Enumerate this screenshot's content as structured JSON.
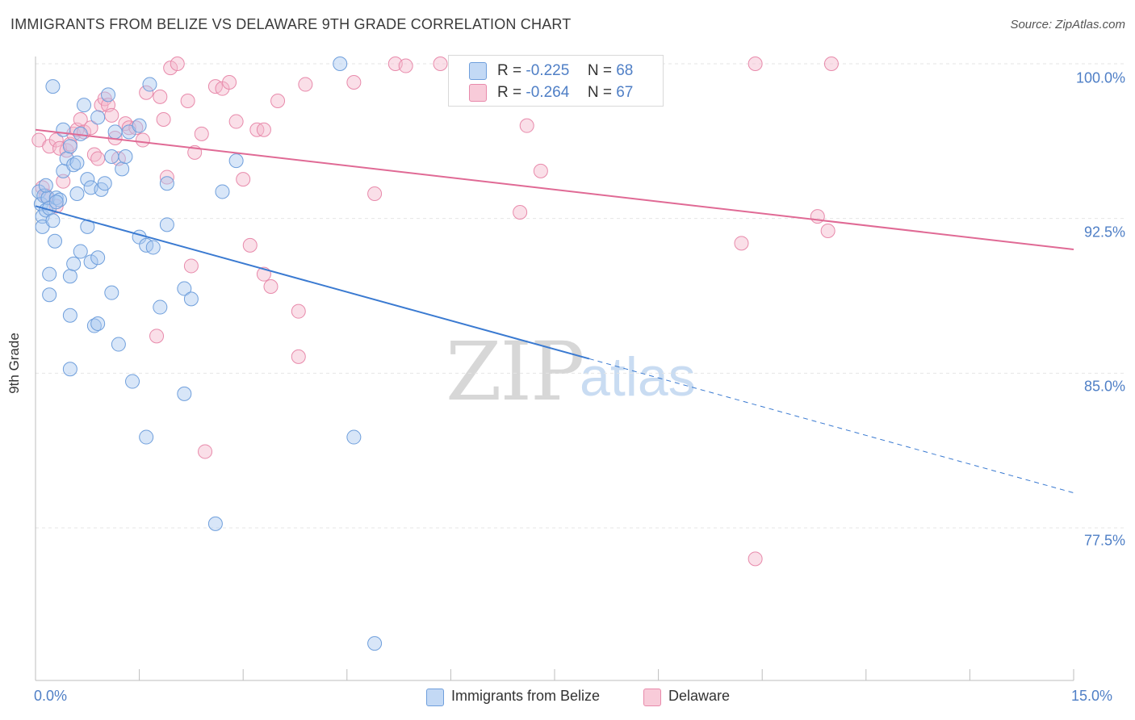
{
  "header": {
    "title": "IMMIGRANTS FROM BELIZE VS DELAWARE 9TH GRADE CORRELATION CHART",
    "source": "Source: ZipAtlas.com"
  },
  "watermark": {
    "zip": "ZIP",
    "atlas": "atlas"
  },
  "legend": {
    "r_label": "R =",
    "n_label": "N =",
    "series": [
      {
        "r": "-0.225",
        "n": "68"
      },
      {
        "r": "-0.264",
        "n": "67"
      }
    ]
  },
  "bottom_legend": {
    "items": [
      "Immigrants from Belize",
      "Delaware"
    ]
  },
  "colors": {
    "blue_fill": "#a9c8f0",
    "blue_stroke": "#6f9fdc",
    "blue_line": "#3a7ad1",
    "pink_fill": "#f5b8cc",
    "pink_stroke": "#e88aab",
    "pink_line": "#e06a95",
    "grid": "#e5e5e5"
  },
  "chart_data": {
    "type": "scatter",
    "title": "IMMIGRANTS FROM BELIZE VS DELAWARE 9TH GRADE CORRELATION CHART",
    "xlabel": "",
    "ylabel": "9th Grade",
    "xlim": [
      0,
      15
    ],
    "ylim": [
      70.5,
      100.7
    ],
    "x_tick_labels": [
      "0.0%",
      "15.0%"
    ],
    "y_ticks": [
      100.0,
      92.5,
      85.0,
      77.5
    ],
    "y_tick_labels": [
      "100.0%",
      "92.5%",
      "85.0%",
      "77.5%"
    ],
    "series": [
      {
        "name": "Immigrants from Belize",
        "color": "blue",
        "r": -0.225,
        "n": 68,
        "trend": {
          "x0": 0,
          "y0": 93.1,
          "x1": 8.0,
          "y1": 85.7,
          "dash_x1": 15.0,
          "dash_y1": 79.2
        },
        "points": [
          [
            0.05,
            93.8
          ],
          [
            0.08,
            93.2
          ],
          [
            0.1,
            92.6
          ],
          [
            0.12,
            93.6
          ],
          [
            0.15,
            92.9
          ],
          [
            0.18,
            93.5
          ],
          [
            0.1,
            92.1
          ],
          [
            0.2,
            93.0
          ],
          [
            0.25,
            92.4
          ],
          [
            0.3,
            93.5
          ],
          [
            0.35,
            93.4
          ],
          [
            0.28,
            91.4
          ],
          [
            0.4,
            94.8
          ],
          [
            0.45,
            95.4
          ],
          [
            0.5,
            96.0
          ],
          [
            0.55,
            95.1
          ],
          [
            0.6,
            95.2
          ],
          [
            0.65,
            96.6
          ],
          [
            0.7,
            98.0
          ],
          [
            0.75,
            94.4
          ],
          [
            0.8,
            94.0
          ],
          [
            0.9,
            97.4
          ],
          [
            0.95,
            93.9
          ],
          [
            1.0,
            94.2
          ],
          [
            1.05,
            98.5
          ],
          [
            1.1,
            95.5
          ],
          [
            1.15,
            96.7
          ],
          [
            1.25,
            94.9
          ],
          [
            1.3,
            95.5
          ],
          [
            1.35,
            96.7
          ],
          [
            1.5,
            97.0
          ],
          [
            1.65,
            99.0
          ],
          [
            1.9,
            94.2
          ],
          [
            2.7,
            93.8
          ],
          [
            2.9,
            95.3
          ],
          [
            4.4,
            100.0
          ],
          [
            0.4,
            96.8
          ],
          [
            0.25,
            98.9
          ],
          [
            0.2,
            89.8
          ],
          [
            0.2,
            88.8
          ],
          [
            0.5,
            89.7
          ],
          [
            0.55,
            90.3
          ],
          [
            0.65,
            90.9
          ],
          [
            0.8,
            90.4
          ],
          [
            0.9,
            90.6
          ],
          [
            0.75,
            92.1
          ],
          [
            1.5,
            91.6
          ],
          [
            1.6,
            91.2
          ],
          [
            1.7,
            91.1
          ],
          [
            1.9,
            92.2
          ],
          [
            0.5,
            87.8
          ],
          [
            0.85,
            87.3
          ],
          [
            0.9,
            87.4
          ],
          [
            1.1,
            88.9
          ],
          [
            1.2,
            86.4
          ],
          [
            1.8,
            88.2
          ],
          [
            2.15,
            89.1
          ],
          [
            2.25,
            88.6
          ],
          [
            0.5,
            85.2
          ],
          [
            1.4,
            84.6
          ],
          [
            2.15,
            84.0
          ],
          [
            1.6,
            81.9
          ],
          [
            4.6,
            81.9
          ],
          [
            2.6,
            77.7
          ],
          [
            4.9,
            71.9
          ],
          [
            0.15,
            94.1
          ],
          [
            0.3,
            93.3
          ],
          [
            0.6,
            93.7
          ]
        ]
      },
      {
        "name": "Delaware",
        "color": "pink",
        "r": -0.264,
        "n": 67,
        "trend": {
          "x0": 0,
          "y0": 96.8,
          "x1": 15.0,
          "y1": 91.0
        },
        "points": [
          [
            0.05,
            96.3
          ],
          [
            0.1,
            94.0
          ],
          [
            0.15,
            93.6
          ],
          [
            0.2,
            96.0
          ],
          [
            0.3,
            96.3
          ],
          [
            0.35,
            95.9
          ],
          [
            0.4,
            94.3
          ],
          [
            0.45,
            95.8
          ],
          [
            0.5,
            96.1
          ],
          [
            0.55,
            96.6
          ],
          [
            0.6,
            96.8
          ],
          [
            0.65,
            97.3
          ],
          [
            0.7,
            96.7
          ],
          [
            0.8,
            96.9
          ],
          [
            0.85,
            95.6
          ],
          [
            0.9,
            95.4
          ],
          [
            0.95,
            98.0
          ],
          [
            1.0,
            98.3
          ],
          [
            1.05,
            98.0
          ],
          [
            1.1,
            97.5
          ],
          [
            1.15,
            96.4
          ],
          [
            1.2,
            95.4
          ],
          [
            1.3,
            97.1
          ],
          [
            1.35,
            96.9
          ],
          [
            1.45,
            96.9
          ],
          [
            1.55,
            96.3
          ],
          [
            1.6,
            98.6
          ],
          [
            1.8,
            98.4
          ],
          [
            1.85,
            97.3
          ],
          [
            1.95,
            99.8
          ],
          [
            2.05,
            100.0
          ],
          [
            2.2,
            98.2
          ],
          [
            2.3,
            95.7
          ],
          [
            2.4,
            96.6
          ],
          [
            2.6,
            98.9
          ],
          [
            2.7,
            98.8
          ],
          [
            2.8,
            99.1
          ],
          [
            2.9,
            97.2
          ],
          [
            3.0,
            94.4
          ],
          [
            3.2,
            96.8
          ],
          [
            3.3,
            96.8
          ],
          [
            3.5,
            98.2
          ],
          [
            3.9,
            99.0
          ],
          [
            4.6,
            99.1
          ],
          [
            4.9,
            93.7
          ],
          [
            5.2,
            100.0
          ],
          [
            5.35,
            99.9
          ],
          [
            5.85,
            100.0
          ],
          [
            7.1,
            97.0
          ],
          [
            7.3,
            94.8
          ],
          [
            10.4,
            100.0
          ],
          [
            11.5,
            100.0
          ],
          [
            7.0,
            92.8
          ],
          [
            10.2,
            91.3
          ],
          [
            11.3,
            92.6
          ],
          [
            11.45,
            91.9
          ],
          [
            3.1,
            91.2
          ],
          [
            3.3,
            89.8
          ],
          [
            3.4,
            89.2
          ],
          [
            2.25,
            90.2
          ],
          [
            1.9,
            94.5
          ],
          [
            3.8,
            88.0
          ],
          [
            1.75,
            86.8
          ],
          [
            3.8,
            85.8
          ],
          [
            2.45,
            81.2
          ],
          [
            10.4,
            76.0
          ],
          [
            0.3,
            93.1
          ]
        ]
      }
    ]
  }
}
